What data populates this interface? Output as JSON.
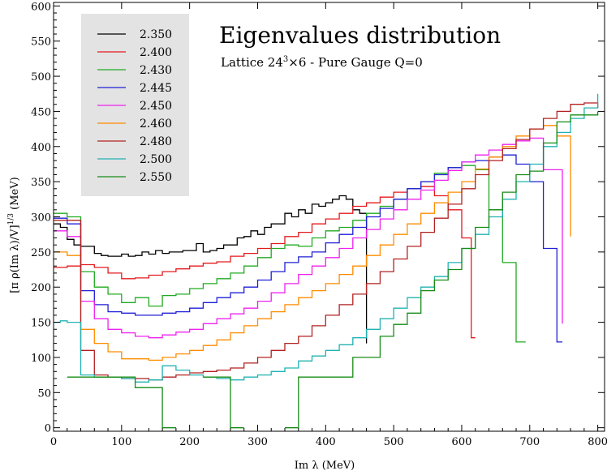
{
  "chart_data": {
    "type": "line",
    "step": true,
    "title": "Eigenvalues distribution",
    "subtitle_prefix": "Lattice 24",
    "subtitle_sup": "3",
    "subtitle_suffix": "×6 - Pure Gauge Q=0",
    "xlabel": "Im λ (MeV)",
    "ylabel_main": "[π ρ(Im λ)/V]",
    "ylabel_sup": "1/3",
    "ylabel_unit": " (MeV)",
    "xlim": [
      0,
      810
    ],
    "ylim": [
      -5,
      605
    ],
    "xticks": [
      0,
      100,
      200,
      300,
      400,
      500,
      600,
      700,
      800
    ],
    "yticks": [
      0,
      50,
      100,
      150,
      200,
      250,
      300,
      350,
      400,
      450,
      500,
      550,
      600
    ],
    "grid": false,
    "legend_position": "top-left",
    "series": [
      {
        "name": "2.350",
        "color": "#000000",
        "x": [
          0,
          10,
          20,
          30,
          40,
          50,
          60,
          70,
          80,
          90,
          100,
          110,
          120,
          130,
          140,
          150,
          160,
          170,
          180,
          190,
          200,
          210,
          220,
          230,
          240,
          250,
          260,
          270,
          280,
          290,
          300,
          310,
          320,
          330,
          340,
          350,
          360,
          370,
          380,
          390,
          400,
          410,
          420,
          430,
          440,
          450,
          460
        ],
        "y": [
          290,
          285,
          268,
          260,
          258,
          258,
          248,
          245,
          244,
          244,
          247,
          244,
          245,
          250,
          247,
          252,
          248,
          250,
          250,
          252,
          252,
          262,
          250,
          252,
          255,
          260,
          260,
          270,
          272,
          280,
          275,
          285,
          290,
          290,
          305,
          300,
          310,
          305,
          318,
          315,
          320,
          325,
          330,
          325,
          310,
          305,
          120
        ]
      },
      {
        "name": "2.400",
        "color": "#e41a1c",
        "x": [
          0,
          20,
          40,
          60,
          80,
          100,
          120,
          140,
          160,
          180,
          200,
          220,
          240,
          260,
          280,
          300,
          320,
          340,
          360,
          380,
          400,
          420,
          440,
          460,
          480,
          500,
          520,
          540,
          560,
          580,
          600,
          614,
          620,
          640,
          660,
          680,
          700,
          720,
          740,
          760,
          780,
          800
        ],
        "y": [
          228,
          230,
          232,
          228,
          220,
          212,
          213,
          217,
          222,
          226,
          230,
          234,
          236,
          244,
          248,
          255,
          262,
          272,
          278,
          290,
          297,
          305,
          315,
          320,
          328,
          335,
          340,
          343,
          330,
          310,
          270,
          128,
          null,
          null,
          null,
          null,
          null,
          null,
          null,
          null,
          null,
          null
        ]
      },
      {
        "name": "2.430",
        "color": "#22aa22",
        "x": [
          0,
          20,
          40,
          60,
          80,
          100,
          120,
          140,
          160,
          180,
          200,
          220,
          240,
          260,
          280,
          300,
          320,
          340,
          360,
          380,
          400,
          420,
          440,
          460,
          480,
          500,
          520,
          540,
          560,
          580,
          600,
          620,
          640,
          660,
          680,
          694
        ],
        "y": [
          305,
          300,
          222,
          200,
          190,
          178,
          185,
          173,
          188,
          190,
          198,
          205,
          212,
          220,
          230,
          242,
          255,
          260,
          258,
          270,
          280,
          285,
          295,
          305,
          315,
          325,
          340,
          350,
          362,
          370,
          373,
          367,
          310,
          235,
          122,
          122
        ]
      },
      {
        "name": "2.445",
        "color": "#1f1fd6",
        "x": [
          0,
          20,
          40,
          60,
          80,
          100,
          120,
          140,
          160,
          180,
          200,
          220,
          240,
          260,
          280,
          300,
          320,
          340,
          360,
          380,
          400,
          420,
          440,
          460,
          480,
          500,
          520,
          540,
          560,
          580,
          600,
          620,
          640,
          660,
          680,
          700,
          720,
          740,
          748
        ],
        "y": [
          298,
          290,
          195,
          175,
          165,
          163,
          160,
          160,
          163,
          165,
          170,
          178,
          185,
          192,
          200,
          210,
          222,
          235,
          243,
          250,
          263,
          275,
          285,
          300,
          312,
          325,
          340,
          350,
          360,
          370,
          378,
          380,
          385,
          388,
          375,
          350,
          255,
          122,
          122
        ]
      },
      {
        "name": "2.450",
        "color": "#ee22ee",
        "x": [
          0,
          20,
          40,
          60,
          80,
          100,
          120,
          140,
          160,
          180,
          200,
          220,
          240,
          260,
          280,
          300,
          320,
          340,
          360,
          380,
          400,
          420,
          440,
          460,
          480,
          500,
          520,
          540,
          560,
          580,
          600,
          620,
          640,
          660,
          680,
          700,
          720,
          740,
          748
        ],
        "y": [
          280,
          272,
          180,
          155,
          140,
          135,
          130,
          128,
          132,
          136,
          140,
          148,
          155,
          162,
          170,
          180,
          192,
          205,
          218,
          230,
          242,
          255,
          270,
          282,
          297,
          310,
          325,
          338,
          352,
          366,
          378,
          388,
          395,
          403,
          408,
          412,
          367,
          367,
          148
        ]
      },
      {
        "name": "2.460",
        "color": "#ff8c00",
        "x": [
          0,
          20,
          40,
          60,
          80,
          100,
          120,
          140,
          160,
          180,
          200,
          220,
          240,
          260,
          280,
          300,
          320,
          340,
          360,
          380,
          400,
          420,
          440,
          460,
          480,
          500,
          520,
          540,
          560,
          580,
          600,
          620,
          640,
          660,
          680,
          700,
          720,
          740,
          760
        ],
        "y": [
          250,
          245,
          140,
          120,
          108,
          98,
          98,
          96,
          100,
          105,
          110,
          117,
          125,
          135,
          145,
          155,
          165,
          175,
          185,
          195,
          205,
          218,
          230,
          245,
          260,
          275,
          290,
          305,
          320,
          335,
          350,
          368,
          385,
          400,
          415,
          425,
          430,
          415,
          272
        ]
      },
      {
        "name": "2.480",
        "color": "#b22222",
        "x": [
          0,
          20,
          40,
          60,
          80,
          100,
          120,
          140,
          160,
          180,
          200,
          220,
          240,
          260,
          280,
          300,
          320,
          340,
          360,
          380,
          400,
          420,
          440,
          460,
          480,
          500,
          520,
          540,
          560,
          580,
          600,
          620,
          640,
          660,
          680,
          700,
          720,
          740,
          760,
          780,
          800
        ],
        "y": [
          295,
          295,
          110,
          75,
          72,
          70,
          70,
          68,
          72,
          75,
          78,
          80,
          82,
          85,
          92,
          100,
          110,
          120,
          130,
          145,
          160,
          175,
          190,
          205,
          222,
          240,
          258,
          278,
          298,
          318,
          340,
          360,
          380,
          397,
          410,
          425,
          440,
          450,
          460,
          462,
          455
        ]
      },
      {
        "name": "2.500",
        "color": "#20b2b2",
        "x": [
          0,
          10,
          20,
          40,
          60,
          80,
          100,
          120,
          140,
          160,
          180,
          200,
          220,
          240,
          260,
          280,
          300,
          320,
          340,
          360,
          380,
          400,
          420,
          440,
          460,
          480,
          500,
          520,
          540,
          560,
          580,
          600,
          620,
          640,
          660,
          680,
          700,
          720,
          740,
          760,
          780,
          800
        ],
        "y": [
          150,
          152,
          150,
          75,
          72,
          72,
          70,
          65,
          68,
          88,
          82,
          75,
          72,
          70,
          68,
          72,
          75,
          80,
          85,
          95,
          102,
          110,
          118,
          128,
          140,
          155,
          170,
          185,
          200,
          215,
          235,
          255,
          275,
          300,
          325,
          350,
          375,
          400,
          420,
          440,
          455,
          475
        ]
      },
      {
        "name": "2.550",
        "color": "#168c16",
        "x": [
          0,
          20,
          40,
          60,
          80,
          100,
          120,
          140,
          160,
          180,
          200,
          220,
          240,
          260,
          280,
          300,
          320,
          340,
          360,
          380,
          400,
          420,
          440,
          460,
          480,
          500,
          520,
          540,
          560,
          580,
          600,
          620,
          640,
          660,
          680,
          700,
          720,
          740,
          760,
          780,
          800
        ],
        "y": [
          null,
          72,
          72,
          72,
          72,
          72,
          57,
          57,
          0,
          null,
          null,
          72,
          72,
          0,
          null,
          null,
          null,
          0,
          72,
          72,
          72,
          72,
          100,
          100,
          130,
          147,
          163,
          195,
          210,
          225,
          255,
          285,
          310,
          335,
          360,
          365,
          405,
          435,
          445,
          445,
          450
        ]
      }
    ]
  }
}
